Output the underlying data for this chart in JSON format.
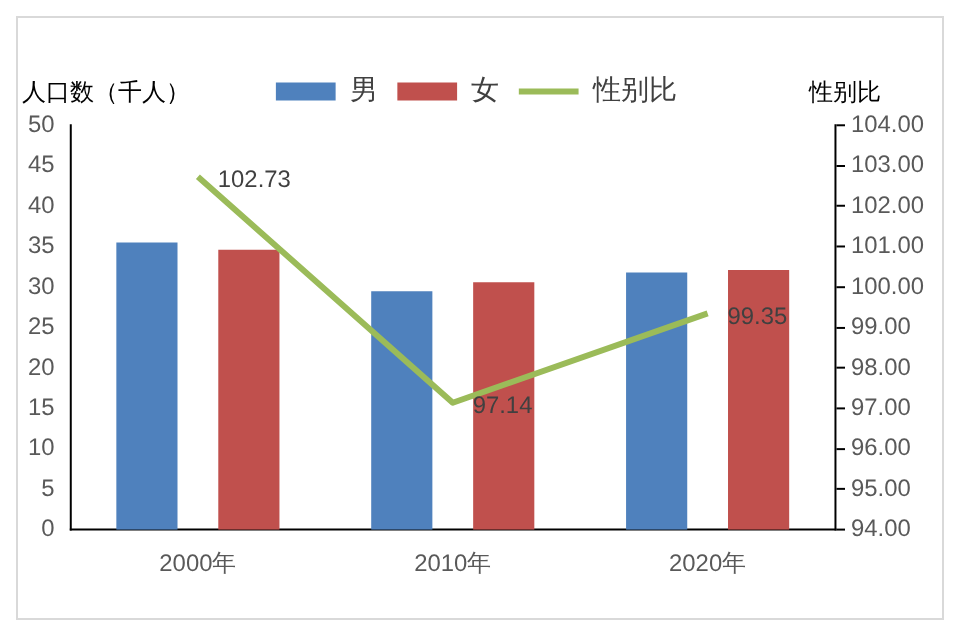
{
  "chart_data": {
    "type": "bar",
    "ylabel": "人口数（千人）",
    "y2label": "性别比",
    "categories": [
      "2000年",
      "2010年",
      "2020年"
    ],
    "series": [
      {
        "name": "男",
        "color": "#4f81bd",
        "values": [
          35.5,
          29.5,
          31.8
        ]
      },
      {
        "name": "女",
        "color": "#c0504d",
        "values": [
          34.6,
          30.6,
          32.1
        ]
      },
      {
        "name": "性别比",
        "type": "line",
        "axis": "y2",
        "color": "#9bbb59",
        "values": [
          102.73,
          97.14,
          99.35
        ],
        "value_labels": [
          "102.73",
          "97.14",
          "99.35"
        ]
      }
    ],
    "ylim": [
      0,
      50
    ],
    "yticks": [
      0,
      5,
      10,
      15,
      20,
      25,
      30,
      35,
      40,
      45,
      50
    ],
    "y2lim": [
      94,
      104
    ],
    "y2ticks": [
      {
        "value": 94,
        "label": "94.00"
      },
      {
        "value": 95,
        "label": "95.00"
      },
      {
        "value": 96,
        "label": "96.00"
      },
      {
        "value": 97,
        "label": "97.00"
      },
      {
        "value": 98,
        "label": "98.00"
      },
      {
        "value": 99,
        "label": "99.00"
      },
      {
        "value": 100,
        "label": "100.00"
      },
      {
        "value": 101,
        "label": "101.00"
      },
      {
        "value": 102,
        "label": "102.00"
      },
      {
        "value": 103,
        "label": "103.00"
      },
      {
        "value": 104,
        "label": "104.00"
      }
    ],
    "grid": false,
    "legend": "top",
    "marker": "none",
    "line_style": "solid"
  }
}
